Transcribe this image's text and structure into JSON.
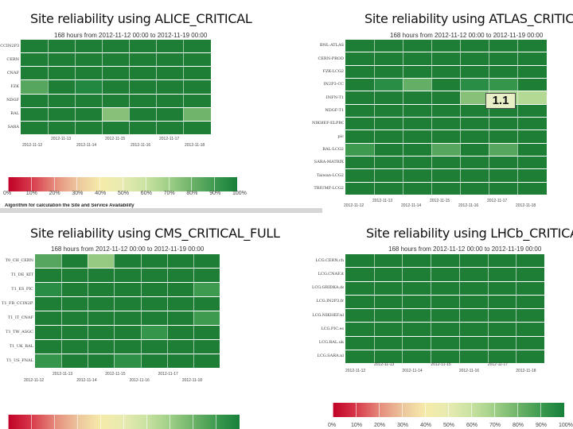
{
  "palette": [
    "#c00027",
    "#d7384a",
    "#e58a7a",
    "#ecc59d",
    "#f6eba9",
    "#e7ebb1",
    "#c9e2a2",
    "#9fcf87",
    "#6fb36a",
    "#3d9a4f",
    "#17803b"
  ],
  "cell_base": "#1e7e35",
  "legend_labels": [
    "0%",
    "10%",
    "20%",
    "30%",
    "40%",
    "50%",
    "60%",
    "70%",
    "80%",
    "90%",
    "100%"
  ],
  "algorithm_note": "Algorithm for calculation the Site and Service Availability",
  "chart_data": [
    {
      "type": "heatmap",
      "title": "Site reliability using ALICE_CRITICAL",
      "subtitle": "168 hours from 2012-11-12 00:00 to 2012-11-19 00:00",
      "rows": [
        "CCIN2P3",
        "CERN",
        "CNAF",
        "FZK",
        "NDGF",
        "RAL",
        "SARA"
      ],
      "columns": 7,
      "values": [
        [
          1,
          1,
          1,
          1,
          1,
          1,
          1
        ],
        [
          1,
          1,
          1,
          1,
          1,
          1,
          1
        ],
        [
          1,
          1,
          1,
          1,
          1,
          1,
          1
        ],
        [
          0.85,
          1,
          0.97,
          1,
          1,
          1,
          1
        ],
        [
          1,
          1,
          1,
          1,
          1,
          1,
          1
        ],
        [
          1,
          1,
          1,
          0.75,
          1,
          1,
          0.8
        ],
        [
          1,
          1,
          1,
          1,
          1,
          1,
          1
        ]
      ],
      "ticks_top": [
        "2012-11-13",
        "2012-11-15",
        "2012-11-17"
      ],
      "ticks_bottom": [
        "2012-11-12",
        "2012-11-14",
        "2012-11-16",
        "2012-11-18"
      ]
    },
    {
      "type": "heatmap",
      "title": "Site reliability using ATLAS_CRITICAL",
      "subtitle": "168 hours from 2012-11-12 00:00 to 2012-11-19 00:00",
      "rows": [
        "BNL-ATLAS",
        "CERN-PROD",
        "FZK-LCG2",
        "IN2P3-CC",
        "INFN-T1",
        "NDGF-T1",
        "NIKHEF-ELPROD",
        "pic",
        "RAL-LCG2",
        "SARA-MATRIX",
        "Taiwan-LCG2",
        "TRIUMF-LCG2"
      ],
      "columns": 7,
      "values": [
        [
          1,
          1,
          1,
          1,
          1,
          1,
          1
        ],
        [
          1,
          1,
          1,
          1,
          1,
          1,
          1
        ],
        [
          1,
          1,
          1,
          1,
          1,
          1,
          1
        ],
        [
          1,
          0.95,
          0.82,
          1,
          0.95,
          0.92,
          1
        ],
        [
          1,
          1,
          1,
          1,
          0.75,
          0.7,
          0.65
        ],
        [
          1,
          1,
          1,
          1,
          1,
          1,
          1
        ],
        [
          1,
          1,
          1,
          1,
          1,
          1,
          1
        ],
        [
          1,
          1,
          1,
          1,
          1,
          1,
          1
        ],
        [
          0.9,
          1,
          1,
          0.85,
          1,
          0.85,
          1
        ],
        [
          1,
          1,
          1,
          1,
          1,
          1,
          1
        ],
        [
          1,
          1,
          1,
          1,
          1,
          1,
          1
        ],
        [
          1,
          1,
          1,
          1,
          1,
          1,
          1
        ]
      ],
      "ticks_top": [
        "2012-11-13",
        "2012-11-15",
        "2012-11-17"
      ],
      "ticks_bottom": [
        "2012-11-12",
        "2012-11-14",
        "2012-11-16",
        "2012-11-18"
      ],
      "annotation": "1.1"
    },
    {
      "type": "heatmap",
      "title": "Site reliability using CMS_CRITICAL_FULL",
      "subtitle": "168 hours from 2012-11-12 00:00 to 2012-11-19 00:00",
      "rows": [
        "T0_CH_CERN",
        "T1_DE_KIT",
        "T1_ES_PIC",
        "T1_FR_CCIN2P3",
        "T1_IT_CNAF",
        "T1_TW_ASGC",
        "T1_UK_RAL",
        "T1_US_FNAL"
      ],
      "columns": 7,
      "values": [
        [
          0.85,
          1,
          0.72,
          1,
          1,
          1,
          1
        ],
        [
          1,
          1,
          1,
          1,
          1,
          1,
          1
        ],
        [
          0.95,
          1,
          1,
          1,
          1,
          1,
          0.9
        ],
        [
          1,
          1,
          1,
          1,
          1,
          1,
          1
        ],
        [
          1,
          1,
          1,
          1,
          1,
          1,
          0.9
        ],
        [
          1,
          1,
          1,
          1,
          0.92,
          1,
          1
        ],
        [
          1,
          1,
          1,
          1,
          1,
          1,
          1
        ],
        [
          0.92,
          1,
          1,
          0.94,
          1,
          1,
          1
        ]
      ],
      "ticks_top": [
        "2012-11-13",
        "2012-11-15",
        "2012-11-17"
      ],
      "ticks_bottom": [
        "2012-11-12",
        "2012-11-14",
        "2012-11-16",
        "2012-11-18"
      ]
    },
    {
      "type": "heatmap",
      "title": "Site reliability using LHCb_CRITICAL",
      "subtitle": "168 hours from 2012-11-12 00:00 to 2012-11-19 00:00",
      "rows": [
        "LCG.CERN.ch",
        "LCG.CNAF.it",
        "LCG.GRIDKA.de",
        "LCG.IN2P3.fr",
        "LCG.NIKHEF.nl",
        "LCG.PIC.es",
        "LCG.RAL.uk",
        "LCG.SARA.nl"
      ],
      "columns": 7,
      "values": [
        [
          1,
          1,
          1,
          1,
          1,
          1,
          1
        ],
        [
          1,
          1,
          1,
          1,
          1,
          1,
          1
        ],
        [
          1,
          1,
          1,
          1,
          1,
          1,
          1
        ],
        [
          1,
          1,
          1,
          1,
          1,
          1,
          1
        ],
        [
          1,
          1,
          1,
          1,
          1,
          1,
          1
        ],
        [
          1,
          1,
          1,
          1,
          1,
          1,
          1
        ],
        [
          1,
          1,
          1,
          1,
          1,
          1,
          1
        ],
        [
          1,
          1,
          1,
          1,
          1,
          1,
          1
        ]
      ],
      "ticks_top": [
        "2012-11-13",
        "2012-11-15",
        "2012-11-17"
      ],
      "ticks_bottom": [
        "2012-11-12",
        "2012-11-14",
        "2012-11-16",
        "2012-11-18"
      ]
    }
  ]
}
